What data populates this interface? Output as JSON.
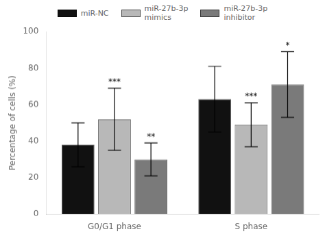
{
  "chart_data": {
    "type": "bar",
    "categories": [
      "G0/G1 phase",
      "S phase"
    ],
    "series": [
      {
        "name": "miR-NC",
        "color": "#111111",
        "values": [
          38,
          63
        ],
        "errors": [
          12,
          18
        ],
        "significance": [
          null,
          null
        ]
      },
      {
        "name": "miR-27b-3p\nmimics",
        "color": "#b8b8b8",
        "values": [
          52,
          49
        ],
        "errors": [
          17,
          12
        ],
        "significance": [
          "***",
          "***"
        ]
      },
      {
        "name": "miR-27b-3p\ninhibitor",
        "color": "#7a7a7a",
        "values": [
          30,
          71
        ],
        "errors": [
          9,
          18
        ],
        "significance": [
          "**",
          "*"
        ]
      }
    ],
    "ylabel": "Percentage of cells (%)",
    "ylim": [
      0,
      100
    ],
    "yticks": [
      0,
      20,
      40,
      60,
      80,
      100
    ],
    "grid": false,
    "legend": "top"
  }
}
